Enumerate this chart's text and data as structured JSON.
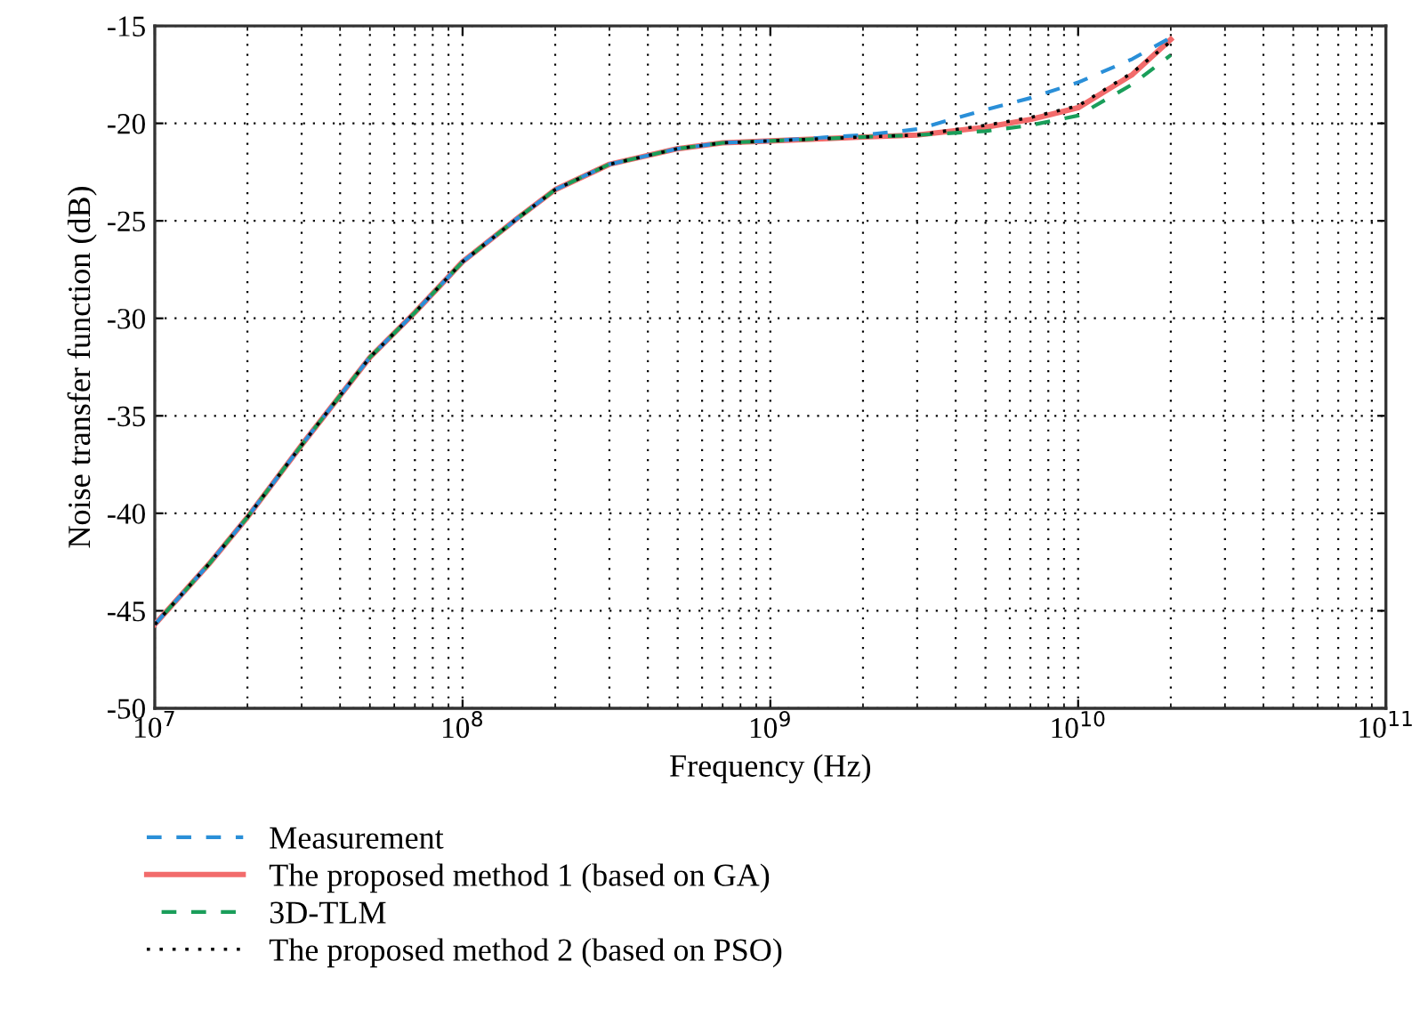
{
  "chart_data": {
    "type": "line",
    "xlabel": "Frequency (Hz)",
    "ylabel": "Noise transfer function (dB)",
    "log": "x",
    "x": [
      10000000.0,
      15000000.0,
      20000000.0,
      30000000.0,
      50000000.0,
      70000000.0,
      100000000.0,
      150000000.0,
      200000000.0,
      300000000.0,
      500000000.0,
      700000000.0,
      1000000000.0,
      2000000000.0,
      3000000000.0,
      5000000000.0,
      7000000000.0,
      10000000000.0,
      15000000000.0,
      20000000000.0
    ],
    "series": [
      {
        "name": "Measurement",
        "color": "#2a8fd8",
        "line_style": "dashed",
        "values": [
          -45.7,
          -42.6,
          -40.2,
          -36.5,
          -32.0,
          -29.7,
          -27.1,
          -24.9,
          -23.4,
          -22.1,
          -21.3,
          -21.0,
          -20.9,
          -20.6,
          -20.3,
          -19.3,
          -18.7,
          -17.9,
          -16.7,
          -15.6
        ]
      },
      {
        "name": "The proposed method 1 (based on GA)",
        "color": "#f26b6b",
        "line_style": "solid",
        "values": [
          -45.7,
          -42.6,
          -40.2,
          -36.5,
          -32.0,
          -29.7,
          -27.1,
          -24.9,
          -23.4,
          -22.1,
          -21.3,
          -21.0,
          -20.9,
          -20.7,
          -20.6,
          -20.2,
          -19.8,
          -19.2,
          -17.5,
          -15.7
        ]
      },
      {
        "name": "3D-TLM",
        "color": "#1a9e5a",
        "line_style": "dashed",
        "values": [
          -45.7,
          -42.6,
          -40.2,
          -36.5,
          -32.0,
          -29.7,
          -27.1,
          -24.9,
          -23.4,
          -22.1,
          -21.3,
          -21.0,
          -20.9,
          -20.7,
          -20.6,
          -20.4,
          -20.1,
          -19.6,
          -18.0,
          -16.5
        ]
      },
      {
        "name": "The proposed method 2 (based on PSO)",
        "color": "#000000",
        "line_style": "dotted",
        "values": [
          -45.7,
          -42.6,
          -40.2,
          -36.5,
          -32.0,
          -29.7,
          -27.1,
          -24.9,
          -23.4,
          -22.1,
          -21.3,
          -21.0,
          -20.9,
          -20.7,
          -20.6,
          -20.1,
          -19.7,
          -19.1,
          -17.4,
          -15.8
        ]
      }
    ],
    "xlim": [
      10000000.0,
      100000000000.0
    ],
    "xticks": [
      {
        "value": 10000000.0,
        "label": "10$^{7}$"
      },
      {
        "value": 100000000.0,
        "label": "10$^{8}$"
      },
      {
        "value": 1000000000.0,
        "label": "10$^{9}$"
      },
      {
        "value": 10000000000.0,
        "label": "10$^{10}$"
      },
      {
        "value": 100000000000.0,
        "label": "10$^{11}$"
      }
    ],
    "ylim": [
      -50,
      -15
    ],
    "yticks": [
      -50,
      -45,
      -40,
      -35,
      -30,
      -25,
      -20,
      -15
    ],
    "grid": true,
    "legend": "bottom"
  }
}
